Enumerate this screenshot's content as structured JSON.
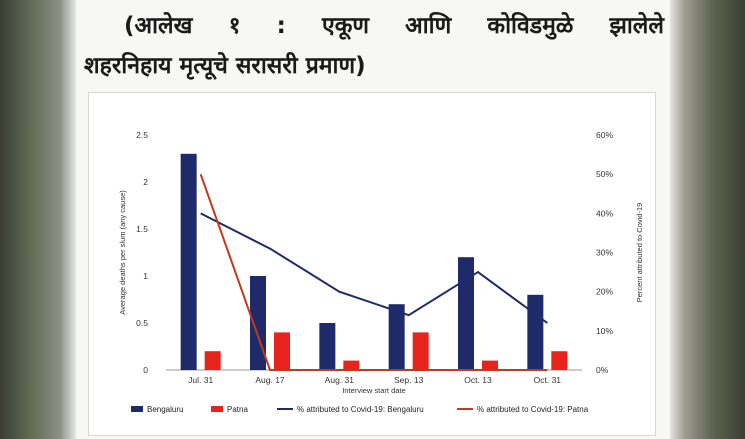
{
  "page": {
    "title_line1": "(आलेख १ : एकूण आणि कोविडमुळे झालेले",
    "title_line2": "शहरनिहाय मृत्यूचे सरासरी प्रमाण)"
  },
  "chart_data": {
    "type": "bar",
    "categories": [
      "Jul. 31",
      "Aug. 17",
      "Aug. 31",
      "Sep. 13",
      "Oct. 13",
      "Oct. 31"
    ],
    "xlabel": "Interview start date",
    "ylabel": "Average deaths per slum (any cause)",
    "y2label": "Percent attributed to Covid-19",
    "ylim": [
      0,
      2.5
    ],
    "y2lim": [
      0,
      60
    ],
    "yticks": [
      "0",
      "0.5",
      "1",
      "1.5",
      "2",
      "2.5"
    ],
    "y2ticks": [
      "0%",
      "10%",
      "20%",
      "30%",
      "40%",
      "50%",
      "60%"
    ],
    "series": [
      {
        "name": "Bengaluru",
        "kind": "bar",
        "axis": "left",
        "color": "#1f2a6b",
        "values": [
          2.3,
          1.0,
          0.5,
          0.7,
          1.2,
          0.8
        ]
      },
      {
        "name": "Patna",
        "kind": "bar",
        "axis": "left",
        "color": "#e8231c",
        "values": [
          0.2,
          0.4,
          0.1,
          0.4,
          0.1,
          0.2
        ]
      },
      {
        "name": "% attributed to Covid-19: Bengaluru",
        "kind": "line",
        "axis": "right",
        "color": "#1f2a6b",
        "values": [
          40,
          31,
          20,
          14,
          25,
          12
        ]
      },
      {
        "name": "% attributed to Covid-19: Patna",
        "kind": "line",
        "axis": "right",
        "color": "#c2391b",
        "values": [
          50,
          0,
          0,
          0,
          0,
          0
        ]
      }
    ],
    "legend_position": "bottom",
    "grid": false
  }
}
